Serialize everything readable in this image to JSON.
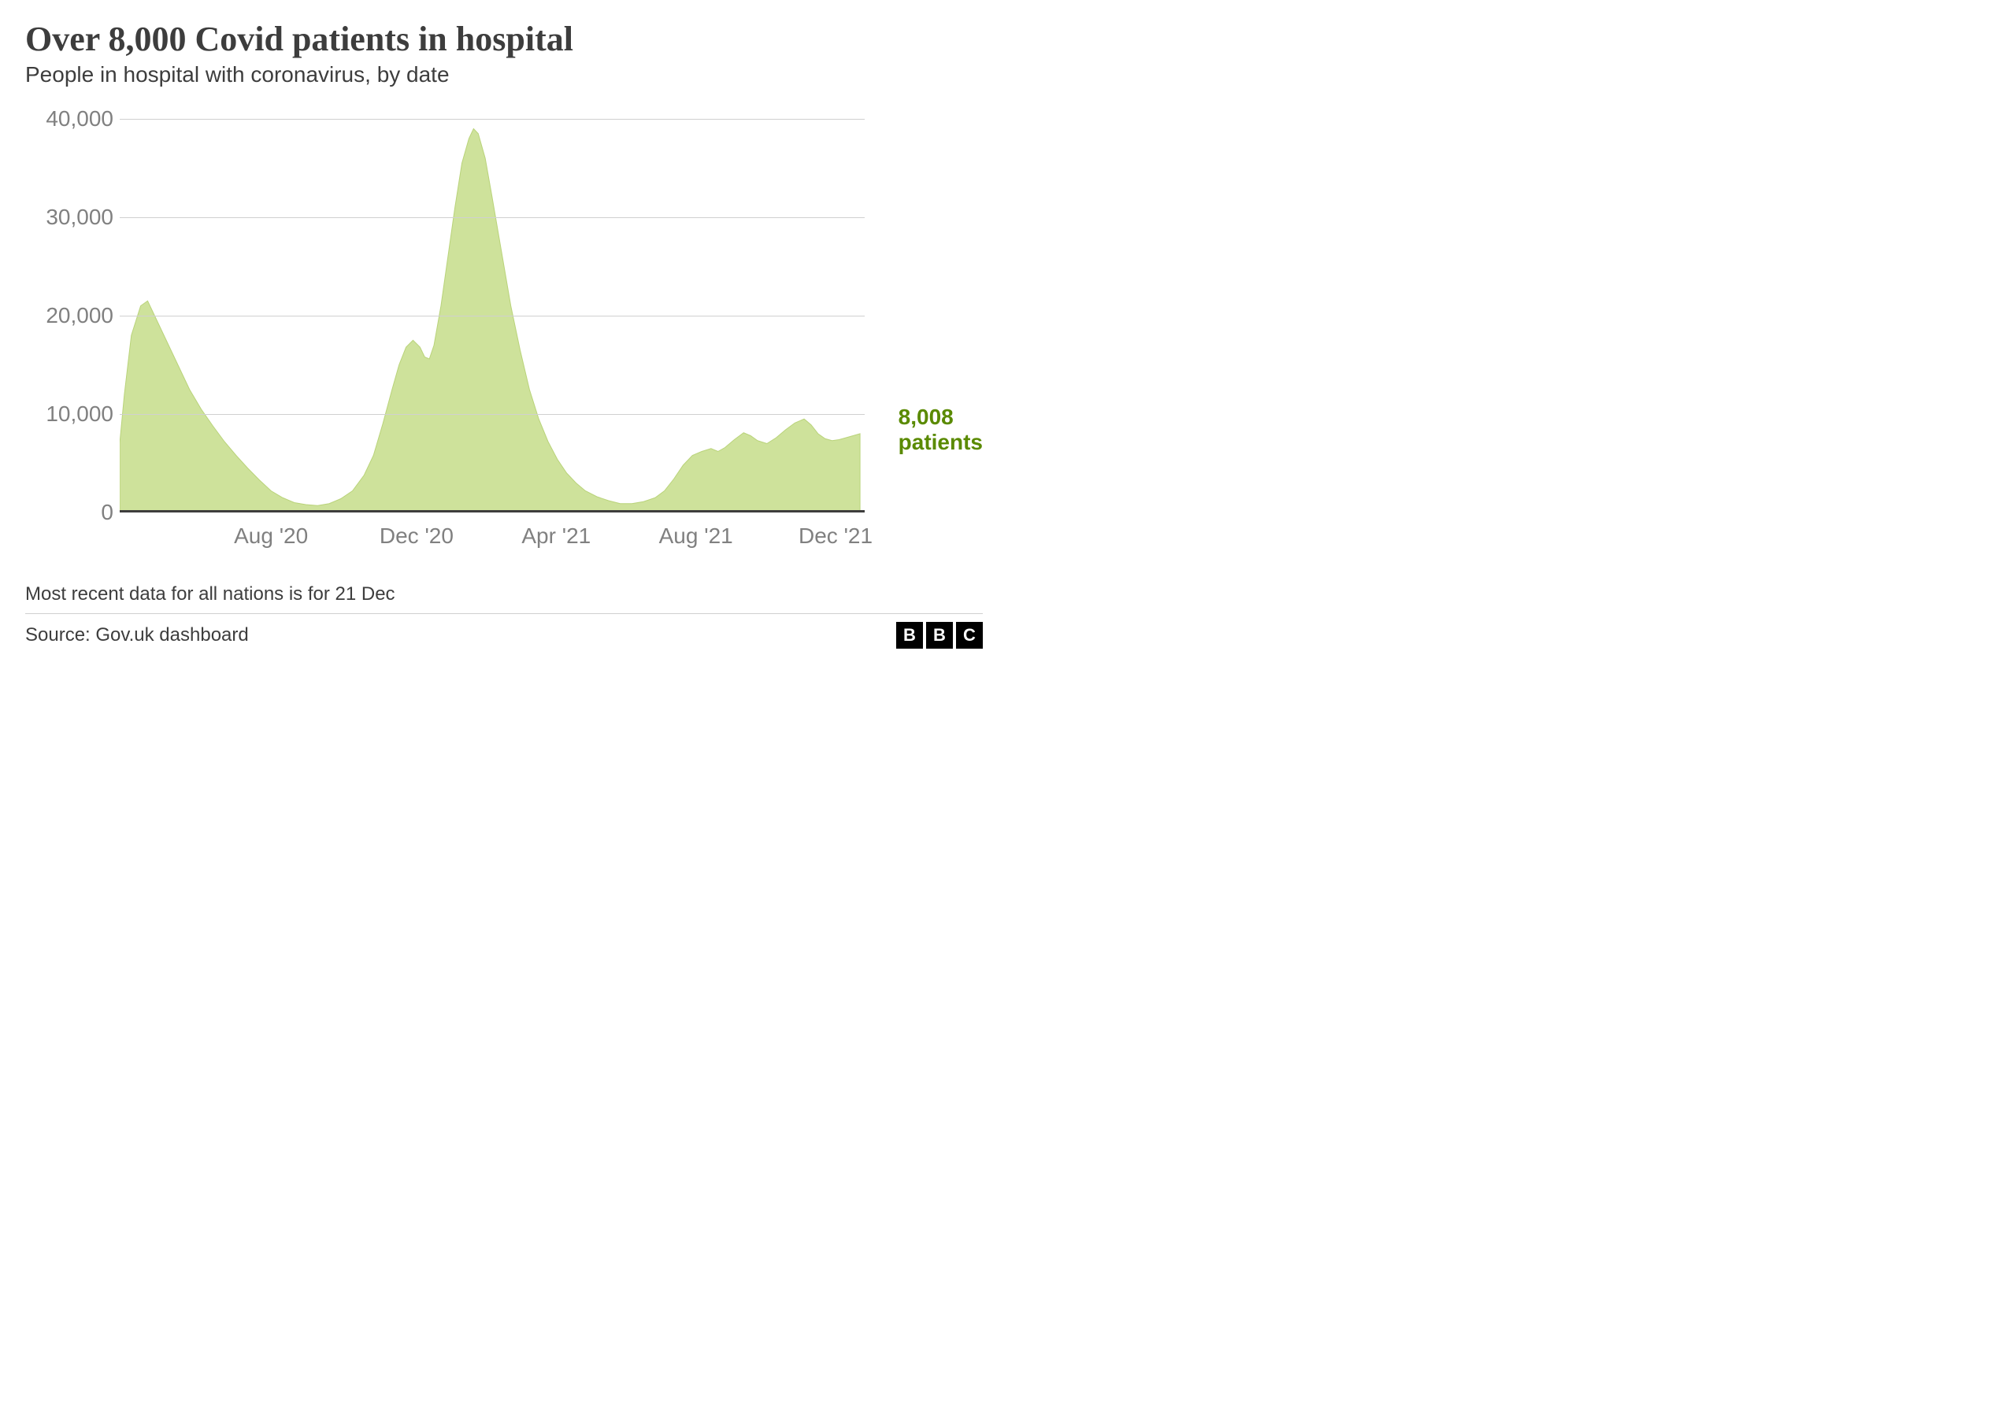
{
  "header": {
    "title": "Over 8,000 Covid patients in hospital",
    "subtitle": "People in hospital with coronavirus, by date"
  },
  "chart": {
    "type": "area",
    "fill_color": "#cee29b",
    "stroke_color": "#b9d37a",
    "background_color": "#ffffff",
    "grid_color": "#d0d0d0",
    "axis_label_color": "#808080",
    "axis_label_fontsize": 28,
    "baseline_color": "#3d3d3d",
    "ylim": [
      0,
      40000
    ],
    "y_ticks": [
      {
        "value": 0,
        "label": "0"
      },
      {
        "value": 10000,
        "label": "10,000"
      },
      {
        "value": 20000,
        "label": "20,000"
      },
      {
        "value": 30000,
        "label": "30,000"
      },
      {
        "value": 40000,
        "label": "40,000"
      }
    ],
    "x_range_days": 640,
    "x_ticks": [
      {
        "day": 130,
        "label": "Aug '20"
      },
      {
        "day": 255,
        "label": "Dec '20"
      },
      {
        "day": 375,
        "label": "Apr '21"
      },
      {
        "day": 495,
        "label": "Aug '21"
      },
      {
        "day": 615,
        "label": "Dec '21"
      }
    ],
    "series": [
      {
        "day": 0,
        "v": 7000
      },
      {
        "day": 4,
        "v": 12000
      },
      {
        "day": 10,
        "v": 18000
      },
      {
        "day": 18,
        "v": 21000
      },
      {
        "day": 24,
        "v": 21500
      },
      {
        "day": 30,
        "v": 20000
      },
      {
        "day": 40,
        "v": 17500
      },
      {
        "day": 50,
        "v": 15000
      },
      {
        "day": 60,
        "v": 12500
      },
      {
        "day": 70,
        "v": 10500
      },
      {
        "day": 80,
        "v": 8800
      },
      {
        "day": 90,
        "v": 7200
      },
      {
        "day": 100,
        "v": 5800
      },
      {
        "day": 110,
        "v": 4500
      },
      {
        "day": 120,
        "v": 3300
      },
      {
        "day": 130,
        "v": 2200
      },
      {
        "day": 140,
        "v": 1500
      },
      {
        "day": 150,
        "v": 1000
      },
      {
        "day": 160,
        "v": 800
      },
      {
        "day": 170,
        "v": 700
      },
      {
        "day": 180,
        "v": 900
      },
      {
        "day": 190,
        "v": 1400
      },
      {
        "day": 200,
        "v": 2200
      },
      {
        "day": 210,
        "v": 3800
      },
      {
        "day": 218,
        "v": 5800
      },
      {
        "day": 226,
        "v": 9000
      },
      {
        "day": 234,
        "v": 12500
      },
      {
        "day": 240,
        "v": 15000
      },
      {
        "day": 246,
        "v": 16800
      },
      {
        "day": 252,
        "v": 17500
      },
      {
        "day": 258,
        "v": 16800
      },
      {
        "day": 262,
        "v": 15800
      },
      {
        "day": 266,
        "v": 15600
      },
      {
        "day": 270,
        "v": 17000
      },
      {
        "day": 276,
        "v": 21000
      },
      {
        "day": 282,
        "v": 26000
      },
      {
        "day": 288,
        "v": 31000
      },
      {
        "day": 294,
        "v": 35500
      },
      {
        "day": 300,
        "v": 38000
      },
      {
        "day": 304,
        "v": 39000
      },
      {
        "day": 308,
        "v": 38500
      },
      {
        "day": 314,
        "v": 36000
      },
      {
        "day": 320,
        "v": 32000
      },
      {
        "day": 328,
        "v": 26500
      },
      {
        "day": 336,
        "v": 21000
      },
      {
        "day": 344,
        "v": 16500
      },
      {
        "day": 352,
        "v": 12500
      },
      {
        "day": 360,
        "v": 9500
      },
      {
        "day": 368,
        "v": 7200
      },
      {
        "day": 376,
        "v": 5400
      },
      {
        "day": 384,
        "v": 4000
      },
      {
        "day": 392,
        "v": 3000
      },
      {
        "day": 400,
        "v": 2200
      },
      {
        "day": 410,
        "v": 1600
      },
      {
        "day": 420,
        "v": 1200
      },
      {
        "day": 430,
        "v": 900
      },
      {
        "day": 440,
        "v": 900
      },
      {
        "day": 450,
        "v": 1100
      },
      {
        "day": 460,
        "v": 1500
      },
      {
        "day": 468,
        "v": 2200
      },
      {
        "day": 476,
        "v": 3400
      },
      {
        "day": 484,
        "v": 4800
      },
      {
        "day": 492,
        "v": 5800
      },
      {
        "day": 500,
        "v": 6200
      },
      {
        "day": 508,
        "v": 6500
      },
      {
        "day": 514,
        "v": 6200
      },
      {
        "day": 520,
        "v": 6600
      },
      {
        "day": 528,
        "v": 7400
      },
      {
        "day": 536,
        "v": 8100
      },
      {
        "day": 542,
        "v": 7800
      },
      {
        "day": 548,
        "v": 7300
      },
      {
        "day": 556,
        "v": 7000
      },
      {
        "day": 564,
        "v": 7600
      },
      {
        "day": 572,
        "v": 8400
      },
      {
        "day": 580,
        "v": 9100
      },
      {
        "day": 588,
        "v": 9500
      },
      {
        "day": 594,
        "v": 8900
      },
      {
        "day": 600,
        "v": 8000
      },
      {
        "day": 606,
        "v": 7500
      },
      {
        "day": 612,
        "v": 7300
      },
      {
        "day": 618,
        "v": 7400
      },
      {
        "day": 624,
        "v": 7600
      },
      {
        "day": 630,
        "v": 7800
      },
      {
        "day": 636,
        "v": 8008
      }
    ],
    "annotation": {
      "line1": "8,008",
      "line2": "patients",
      "color": "#5a8a00",
      "at_value": 11000
    }
  },
  "footer": {
    "note": "Most recent data for all nations is for 21 Dec",
    "source": "Source: Gov.uk dashboard",
    "attribution_letters": [
      "B",
      "B",
      "C"
    ]
  }
}
